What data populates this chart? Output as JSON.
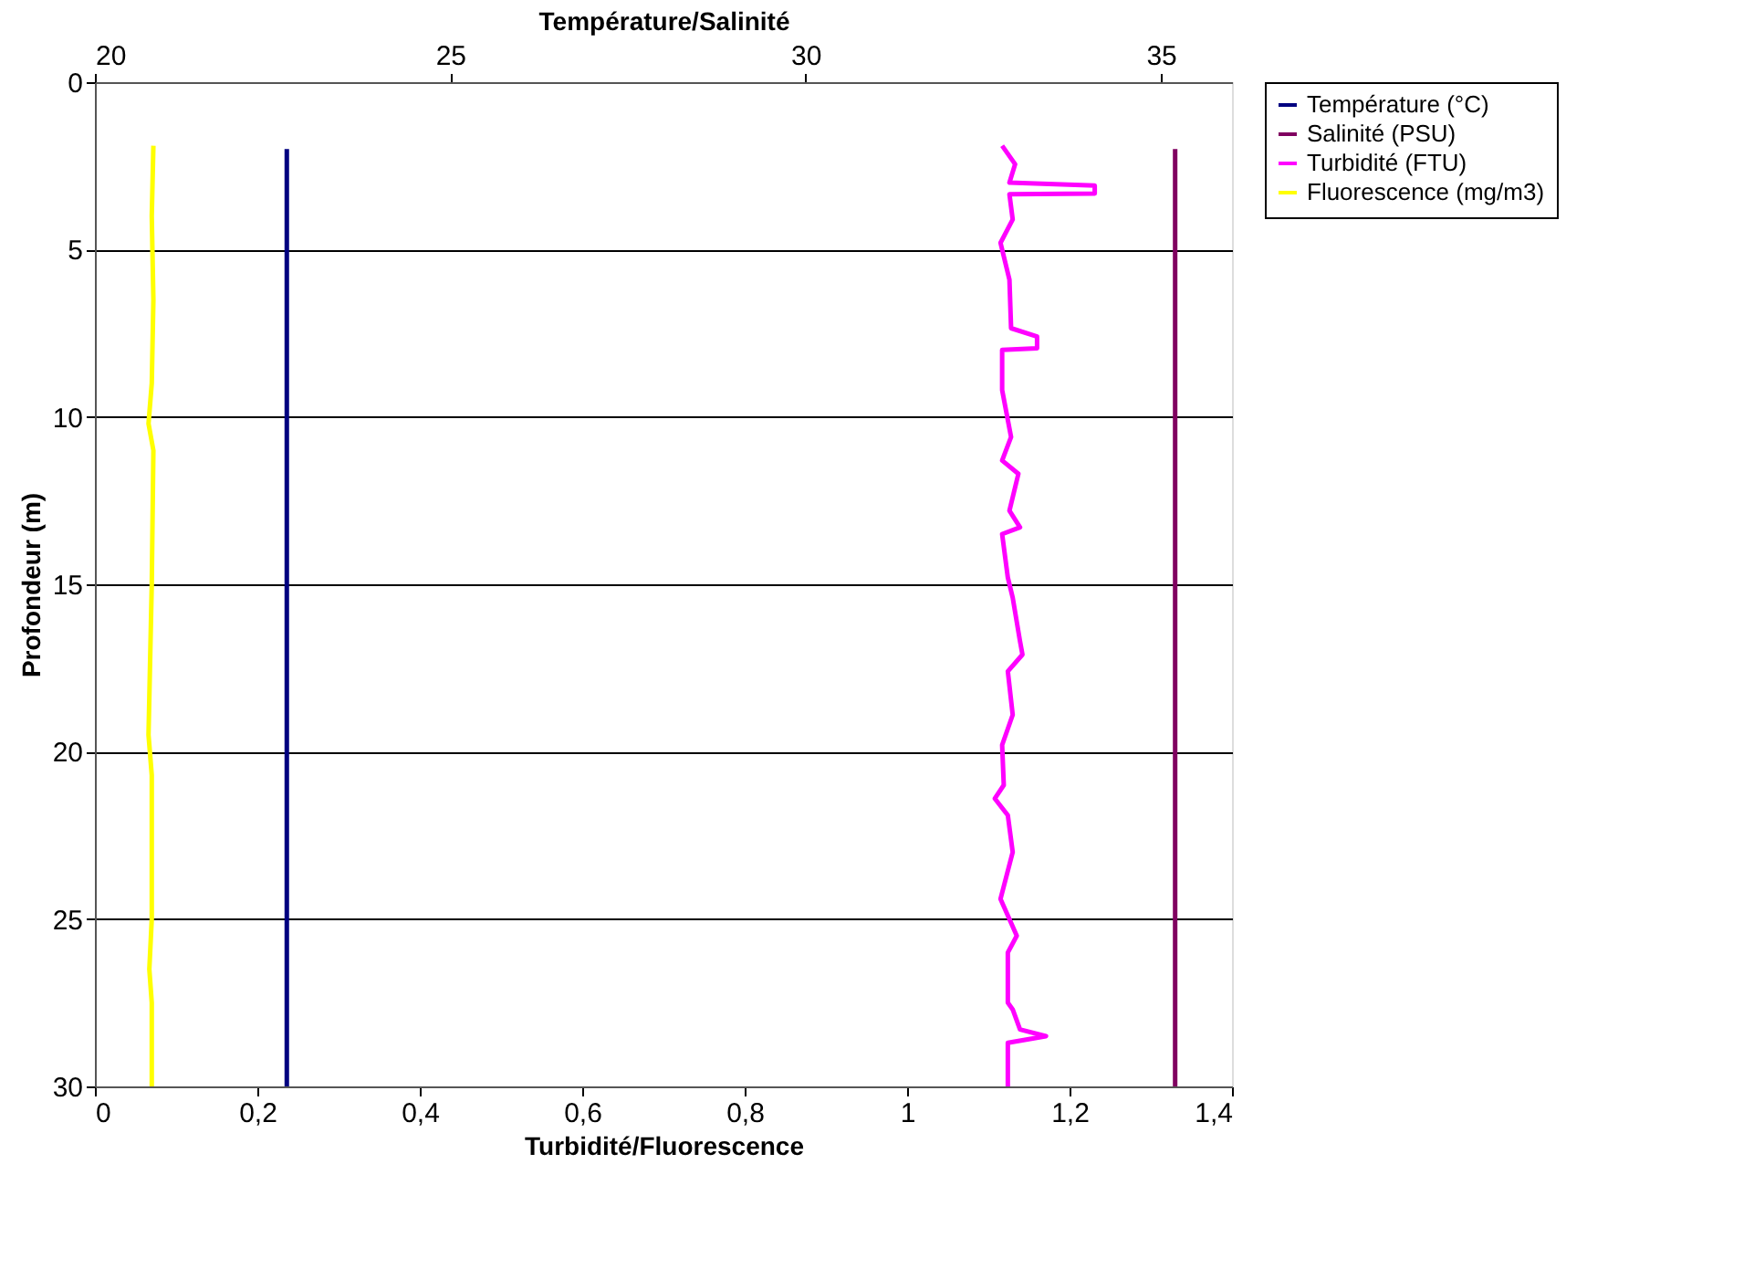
{
  "chart_data": {
    "type": "line",
    "xlabel": "Turbidité/Fluorescence",
    "x2label": "Température/Salinité",
    "ylabel": "Profondeur (m)",
    "xlim": [
      0,
      1.4
    ],
    "xticks": [
      0,
      {
        "value": 0.2,
        "label": "0,2"
      },
      {
        "value": 0.4,
        "label": "0,4"
      },
      {
        "value": 0.6,
        "label": "0,6"
      },
      {
        "value": 0.8,
        "label": "0,8"
      },
      1,
      {
        "value": 1.2,
        "label": "1,2"
      },
      {
        "value": 1.4,
        "label": "1,4"
      }
    ],
    "x2lim": [
      20,
      36
    ],
    "x2ticks": [
      20,
      25,
      30,
      35
    ],
    "ylim": [
      30,
      0
    ],
    "yticks": [
      0,
      5,
      10,
      15,
      20,
      25,
      30
    ],
    "grid": "y",
    "legend": "right",
    "line_style": "solid",
    "marker": "none",
    "series": [
      {
        "name": "Température (°C)",
        "color": "#000080",
        "axis": "x2",
        "x": [
          22.7,
          22.7,
          22.7,
          22.7
        ],
        "values": [
          2,
          10,
          20,
          30
        ]
      },
      {
        "name": "Salinité (PSU)",
        "color": "#800060",
        "axis": "x2",
        "x": [
          35.2,
          35.2,
          35.2,
          35.2
        ],
        "values": [
          2,
          10,
          20,
          30
        ]
      },
      {
        "name": "Turbidité (FTU)",
        "color": "#ff00ff",
        "x": [
          1.117,
          1.133,
          1.126,
          1.231,
          1.231,
          1.126,
          1.13,
          1.115,
          1.126,
          1.128,
          1.16,
          1.16,
          1.117,
          1.117,
          1.128,
          1.117,
          1.137,
          1.126,
          1.139,
          1.117,
          1.124,
          1.13,
          1.139,
          1.142,
          1.124,
          1.13,
          1.117,
          1.119,
          1.108,
          1.124,
          1.13,
          1.115,
          1.135,
          1.124,
          1.124,
          1.13,
          1.139,
          1.171,
          1.124,
          1.124,
          1.124
        ],
        "values": [
          1.9,
          2.45,
          3.0,
          3.09,
          3.33,
          3.35,
          4.1,
          4.8,
          5.9,
          7.35,
          7.6,
          7.95,
          8.0,
          9.2,
          10.6,
          11.3,
          11.7,
          12.8,
          13.3,
          13.5,
          14.8,
          15.4,
          16.7,
          17.1,
          17.6,
          18.9,
          19.8,
          21.0,
          21.4,
          21.9,
          23.0,
          24.4,
          25.5,
          26.0,
          27.5,
          27.7,
          28.3,
          28.5,
          28.7,
          29.6,
          30
        ]
      },
      {
        "name": "Fluorescence (mg/m3)",
        "color": "#ffff00",
        "x": [
          0.072,
          0.07,
          0.072,
          0.07,
          0.066,
          0.072,
          0.07,
          0.066,
          0.07,
          0.07,
          0.067,
          0.07,
          0.07
        ],
        "values": [
          1.9,
          4,
          6.5,
          9,
          10.2,
          11,
          15,
          19.5,
          20.7,
          25,
          26.5,
          27.5,
          30
        ]
      }
    ]
  }
}
